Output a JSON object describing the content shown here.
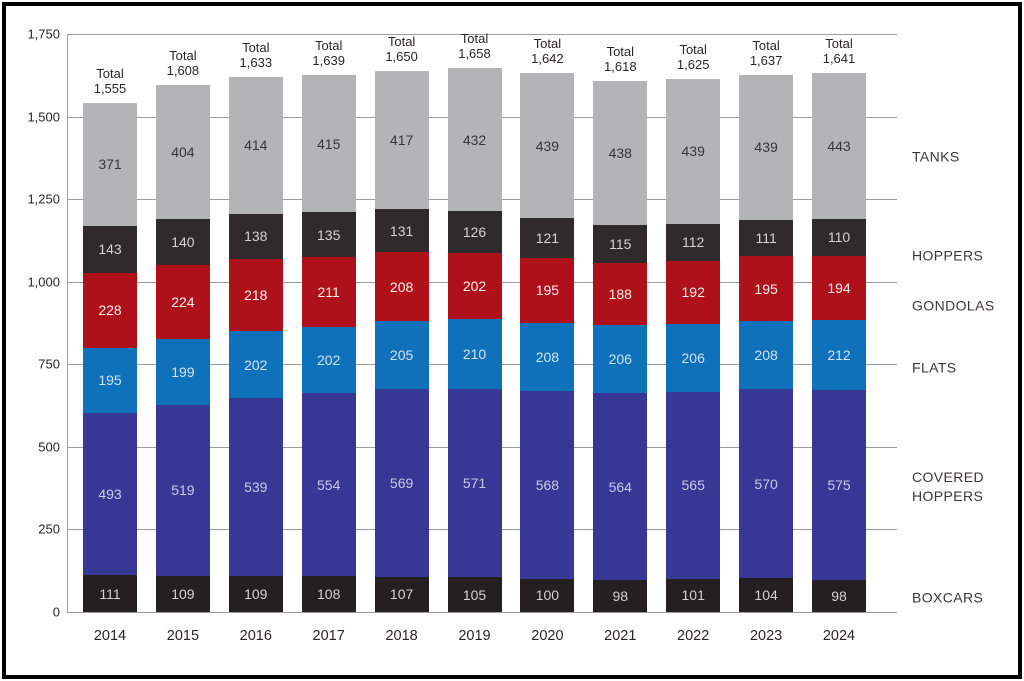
{
  "chart_data": {
    "type": "bar",
    "subtype": "stacked-vertical",
    "title": "",
    "categories": [
      "2014",
      "2015",
      "2016",
      "2017",
      "2018",
      "2019",
      "2020",
      "2021",
      "2022",
      "2023",
      "2024"
    ],
    "series": [
      {
        "name": "BOXCARS",
        "color": "#241f20",
        "label_color": "#d1d3d4",
        "values": [
          111,
          109,
          109,
          108,
          107,
          105,
          100,
          98,
          101,
          104,
          98
        ]
      },
      {
        "name": "COVERED HOPPERS",
        "color": "#373796",
        "label_color": "#c8c9e6",
        "values": [
          493,
          519,
          539,
          554,
          569,
          571,
          568,
          564,
          565,
          570,
          575
        ]
      },
      {
        "name": "FLATS",
        "color": "#0e71b9",
        "label_color": "#cfe3f3",
        "values": [
          195,
          199,
          202,
          202,
          205,
          210,
          208,
          206,
          206,
          208,
          212
        ]
      },
      {
        "name": "GONDOLAS",
        "color": "#ae111a",
        "label_color": "#f9efef",
        "values": [
          228,
          224,
          218,
          211,
          208,
          202,
          195,
          188,
          192,
          195,
          194
        ]
      },
      {
        "name": "HOPPERS",
        "color": "#2f2b2c",
        "label_color": "#d1d3d4",
        "values": [
          143,
          140,
          138,
          135,
          131,
          126,
          121,
          115,
          112,
          111,
          110
        ]
      },
      {
        "name": "TANKS",
        "color": "#b2b4b6",
        "label_color": "#3a3637",
        "values": [
          371,
          404,
          414,
          415,
          417,
          432,
          439,
          438,
          439,
          439,
          443
        ]
      }
    ],
    "total_prefix": "Total",
    "totals": [
      "1,555",
      "1,608",
      "1,633",
      "1,639",
      "1,650",
      "1,658",
      "1,642",
      "1,618",
      "1,625",
      "1,637",
      "1,641"
    ],
    "y_ticks": [
      {
        "value": 0,
        "label": "0"
      },
      {
        "value": 250,
        "label": "250"
      },
      {
        "value": 500,
        "label": "500"
      },
      {
        "value": 750,
        "label": "750"
      },
      {
        "value": 1000,
        "label": "1,000"
      },
      {
        "value": 1250,
        "label": "1,250"
      },
      {
        "value": 1500,
        "label": "1,500"
      },
      {
        "value": 1750,
        "label": "1,750"
      }
    ],
    "ylim": [
      0,
      1750
    ],
    "xlabel": "",
    "ylabel": "",
    "grid": true,
    "legend_position": "right",
    "legend": [
      {
        "series": "TANKS",
        "lines": [
          "TANKS"
        ]
      },
      {
        "series": "HOPPERS",
        "lines": [
          "HOPPERS"
        ]
      },
      {
        "series": "GONDOLAS",
        "lines": [
          "GONDOLAS"
        ]
      },
      {
        "series": "FLATS",
        "lines": [
          "FLATS"
        ]
      },
      {
        "series": "COVERED HOPPERS",
        "lines": [
          "COVERED",
          "HOPPERS"
        ]
      },
      {
        "series": "BOXCARS",
        "lines": [
          "BOXCARS"
        ]
      }
    ],
    "colors": {
      "gridline": "#9d9d9d",
      "axis_text": "#2a2627",
      "frame_border": "#000000",
      "background": "#ffffff"
    }
  }
}
